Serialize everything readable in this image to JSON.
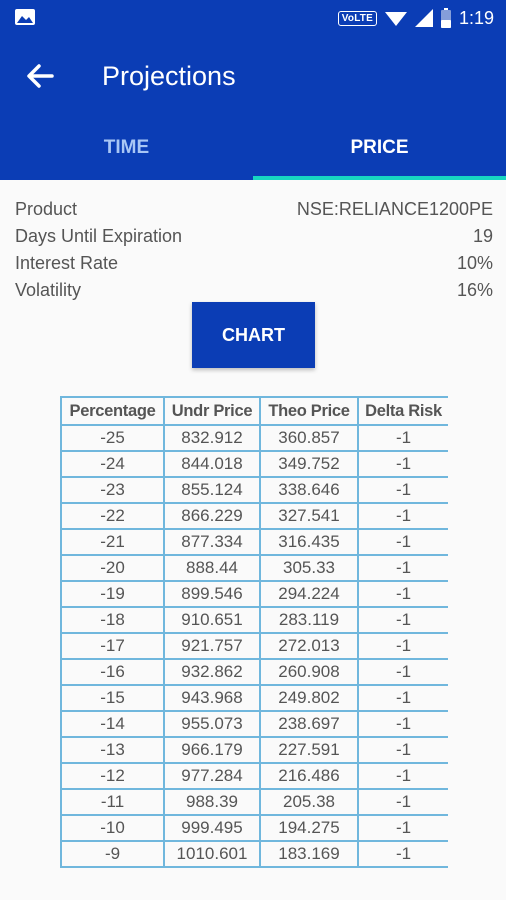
{
  "status_bar": {
    "network": "VoLTE",
    "time": "1:19"
  },
  "app_bar": {
    "title": "Projections"
  },
  "tabs": [
    {
      "label": "TIME",
      "active": false
    },
    {
      "label": "PRICE",
      "active": true
    }
  ],
  "info": [
    {
      "label": "Product",
      "value": "NSE:RELIANCE1200PE"
    },
    {
      "label": "Days Until Expiration",
      "value": "19"
    },
    {
      "label": "Interest Rate",
      "value": "10%"
    },
    {
      "label": "Volatility",
      "value": "16%"
    }
  ],
  "chart_button": {
    "label": "CHART"
  },
  "table": {
    "headers": [
      "Percentage",
      "Undr Price",
      "Theo Price",
      "Delta Risk"
    ],
    "rows": [
      [
        "-25",
        "832.912",
        "360.857",
        "-1"
      ],
      [
        "-24",
        "844.018",
        "349.752",
        "-1"
      ],
      [
        "-23",
        "855.124",
        "338.646",
        "-1"
      ],
      [
        "-22",
        "866.229",
        "327.541",
        "-1"
      ],
      [
        "-21",
        "877.334",
        "316.435",
        "-1"
      ],
      [
        "-20",
        "888.44",
        "305.33",
        "-1"
      ],
      [
        "-19",
        "899.546",
        "294.224",
        "-1"
      ],
      [
        "-18",
        "910.651",
        "283.119",
        "-1"
      ],
      [
        "-17",
        "921.757",
        "272.013",
        "-1"
      ],
      [
        "-16",
        "932.862",
        "260.908",
        "-1"
      ],
      [
        "-15",
        "943.968",
        "249.802",
        "-1"
      ],
      [
        "-14",
        "955.073",
        "238.697",
        "-1"
      ],
      [
        "-13",
        "966.179",
        "227.591",
        "-1"
      ],
      [
        "-12",
        "977.284",
        "216.486",
        "-1"
      ],
      [
        "-11",
        "988.39",
        "205.38",
        "-1"
      ],
      [
        "-10",
        "999.495",
        "194.275",
        "-1"
      ],
      [
        "-9",
        "1010.601",
        "183.169",
        "-1"
      ]
    ]
  },
  "colors": {
    "primary": "#0b3db5",
    "tab_indicator": "#17d6c1",
    "table_border": "#70b7dd"
  }
}
